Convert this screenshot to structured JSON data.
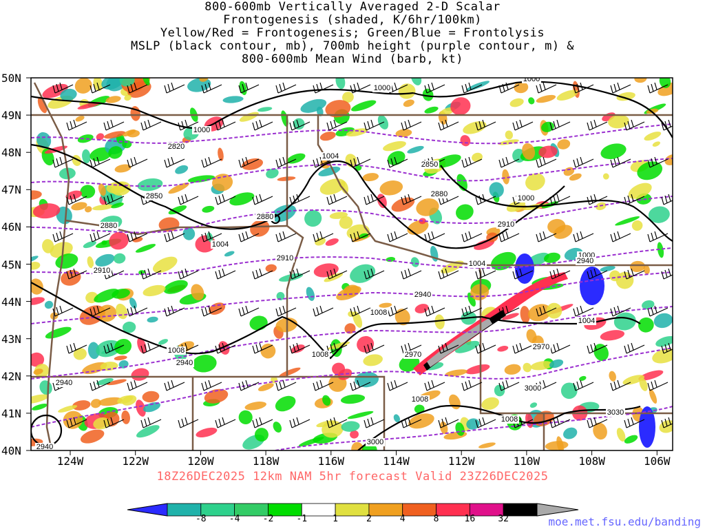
{
  "title": {
    "line1": "800-600mb Vertically Averaged 2-D Scalar",
    "line2": "Frontogenesis (shaded, K/6hr/100km)",
    "line3": "Yellow/Red = Frontogenesis;  Green/Blue = Frontolysis",
    "line4": "MSLP (black contour, mb), 700mb height (purple contour, m) &",
    "line5": "800-600mb Mean Wind (barb, kt)"
  },
  "lat_labels": [
    "50N",
    "49N",
    "48N",
    "47N",
    "46N",
    "45N",
    "44N",
    "43N",
    "42N",
    "41N",
    "40N"
  ],
  "lon_labels": [
    "124W",
    "122W",
    "120W",
    "118W",
    "116W",
    "114W",
    "112W",
    "110W",
    "108W",
    "106W"
  ],
  "contour_labels": {
    "mslp": [
      "1000",
      "1000",
      "1000",
      "1004",
      "1004",
      "1000",
      "1004",
      "1000",
      "1004",
      "1008",
      "1008",
      "1008",
      "1008",
      "1008"
    ],
    "height": [
      "2820",
      "2850",
      "2880",
      "2850",
      "2880",
      "2910",
      "2910",
      "2880",
      "2910",
      "2940",
      "2940",
      "2940",
      "2970",
      "2970",
      "3000",
      "3000",
      "3030",
      "2940",
      "2940"
    ]
  },
  "valid_text": "18Z26DEC2025  12km NAM 5hr forecast Valid 23Z26DEC2025",
  "colorbar": {
    "ticks": [
      "-8",
      "-4",
      "-2",
      "-1",
      "1",
      "2",
      "4",
      "8",
      "16",
      "32"
    ],
    "colors": [
      "#2b2bff",
      "#20b2aa",
      "#2ed18c",
      "#33cc66",
      "#00dd00",
      "#ffffff",
      "#e0e040",
      "#f0a020",
      "#f06020",
      "#ff3050",
      "#e0108a",
      "#000000",
      "#aaaaaa"
    ]
  },
  "credit": "moe.met.fsu.edu/banding"
}
